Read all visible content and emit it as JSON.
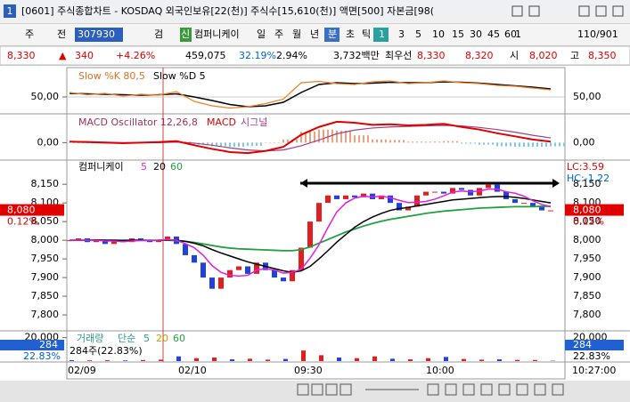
{
  "window": {
    "title": "[0601] 주식종합차트 - KOSDAQ 외국인보유[22(천)] 주식수[15,610(천)] 액면[500] 자본금[98("
  },
  "toolbar": {
    "market": "주",
    "kind": "전",
    "code": "307930",
    "search": "검",
    "new": "신",
    "name": "컴퍼니케이",
    "periods": [
      "일",
      "주",
      "월",
      "년",
      "분",
      "초",
      "틱"
    ],
    "intervals": [
      "1",
      "3",
      "5",
      "10",
      "15",
      "30",
      "45",
      "60"
    ],
    "count": "1",
    "range": "110/901"
  },
  "quote": [
    "8,330",
    "▲",
    "340",
    "+4.26%",
    "459,075",
    "32.19%",
    "2.94%",
    "3,732백만",
    "최우선",
    "8,330",
    "8,320",
    "시",
    "8,020",
    "고",
    "8,350"
  ],
  "stochastic": {
    "labels": [
      "Slow %K 80,5",
      "Slow %D 5"
    ],
    "ylim": [
      20,
      110
    ],
    "yticks": [
      {
        "value": 50,
        "label": "50,00"
      }
    ],
    "k": [
      60,
      55,
      58,
      52,
      56,
      54,
      62,
      40,
      30,
      25,
      28,
      35,
      45,
      82,
      85,
      80,
      78,
      84,
      86,
      80,
      82,
      86,
      82,
      80,
      76,
      74,
      70,
      66
    ],
    "d": [
      58,
      57,
      56,
      55,
      54,
      55,
      57,
      50,
      42,
      33,
      28,
      30,
      38,
      60,
      78,
      82,
      80,
      81,
      83,
      82,
      82,
      84,
      83,
      81,
      78,
      75,
      72,
      68
    ]
  },
  "macd": {
    "labels": [
      "MACD Oscillator 12,26,8",
      "MACD",
      "시그널"
    ],
    "ylim": [
      -30,
      50
    ],
    "yticks": [
      {
        "value": 0,
        "label": "0,00"
      }
    ],
    "macd": [
      2,
      1,
      0,
      -1,
      0,
      1,
      3,
      -5,
      -12,
      -18,
      -20,
      -16,
      -8,
      15,
      30,
      40,
      38,
      34,
      35,
      33,
      34,
      36,
      30,
      25,
      18,
      12,
      6,
      2
    ],
    "signal": [
      2,
      2,
      1,
      0,
      0,
      0,
      1,
      -1,
      -5,
      -10,
      -14,
      -16,
      -14,
      -6,
      5,
      17,
      24,
      28,
      30,
      31,
      32,
      33,
      32,
      29,
      25,
      20,
      14,
      9
    ],
    "oscillator": [
      0,
      -1,
      -1,
      -1,
      0,
      1,
      2,
      -4,
      -7,
      -8,
      -6,
      0,
      6,
      21,
      25,
      23,
      14,
      6,
      5,
      2,
      2,
      3,
      -2,
      -4,
      -7,
      -8,
      -8,
      -7
    ]
  },
  "price": {
    "labels": [
      "컴퍼니케이",
      "5",
      "20",
      "60"
    ],
    "ylim": [
      7762,
      8210
    ],
    "yticks": [
      {
        "value": 8150,
        "label": "8,150"
      },
      {
        "value": 8100,
        "label": "8,100"
      },
      {
        "value": 8050,
        "label": "8,050"
      },
      {
        "value": 8000,
        "label": "8,000"
      },
      {
        "value": 7950,
        "label": "7,950"
      },
      {
        "value": 7900,
        "label": "7,900"
      },
      {
        "value": 7850,
        "label": "7,850"
      },
      {
        "value": 7800,
        "label": "7,800"
      }
    ],
    "current": {
      "value": 8080,
      "label": "8,080"
    },
    "change": "0.12%",
    "lc": "LC:3.59",
    "hc": "HC:-1.22",
    "close": [
      8000,
      8005,
      7995,
      8000,
      7990,
      8000,
      7995,
      8005,
      8000,
      7995,
      8000,
      8010,
      7990,
      7960,
      7940,
      7900,
      7870,
      7900,
      7920,
      7930,
      7910,
      7940,
      7920,
      7900,
      7890,
      7920,
      7980,
      8050,
      8100,
      8120,
      8110,
      8120,
      8115,
      8125,
      8110,
      8120,
      8100,
      8080,
      8090,
      8120,
      8130,
      8130,
      8125,
      8140,
      8135,
      8120,
      8140,
      8150,
      8130,
      8110,
      8100,
      8100,
      8090,
      8080,
      8080
    ],
    "ma5": [
      8000,
      8000,
      8000,
      8000,
      7998,
      7998,
      7996,
      7998,
      7999,
      7999,
      8000,
      8002,
      8000,
      7991,
      7980,
      7960,
      7932,
      7914,
      7906,
      7904,
      7906,
      7920,
      7924,
      7920,
      7912,
      7914,
      7922,
      7952,
      7988,
      8034,
      8076,
      8100,
      8113,
      8118,
      8116,
      8118,
      8114,
      8107,
      8101,
      8102,
      8104,
      8110,
      8119,
      8129,
      8132,
      8130,
      8132,
      8137,
      8137,
      8130,
      8126,
      8118,
      8106,
      8096,
      8090
    ],
    "ma20": [
      8000,
      8000,
      8000,
      8001,
      8000,
      8000,
      7999,
      8000,
      8000,
      7999,
      8000,
      8001,
      8000,
      7997,
      7992,
      7985,
      7975,
      7966,
      7958,
      7950,
      7942,
      7936,
      7930,
      7924,
      7918,
      7914,
      7918,
      7930,
      7950,
      7972,
      7995,
      8015,
      8035,
      8050,
      8062,
      8072,
      8080,
      8085,
      8088,
      8092,
      8096,
      8100,
      8104,
      8108,
      8110,
      8112,
      8114,
      8116,
      8117,
      8117,
      8115,
      8112,
      8108,
      8104,
      8100
    ],
    "ma60": [
      8000,
      8000,
      8000,
      8000,
      8000,
      8000,
      8000,
      8000,
      8000,
      8000,
      8000,
      8000,
      7999,
      7997,
      7994,
      7990,
      7986,
      7982,
      7979,
      7977,
      7976,
      7975,
      7974,
      7973,
      7972,
      7972,
      7975,
      7982,
      7992,
      8002,
      8012,
      8022,
      8030,
      8038,
      8045,
      8051,
      8056,
      8060,
      8064,
      8068,
      8072,
      8075,
      8078,
      8080,
      8082,
      8084,
      8086,
      8087,
      8088,
      8089,
      8090,
      8090,
      8090,
      8091,
      8091
    ]
  },
  "volume": {
    "labels": [
      "거래량",
      "단순",
      "5",
      "20",
      "60"
    ],
    "last": "284",
    "ratio": "22.83%",
    "note": "284주(22.83%)",
    "ylim": [
      0,
      25000
    ],
    "yticks": [
      {
        "value": 20000,
        "label": "20,000"
      }
    ],
    "values": [
      800,
      600,
      700,
      500,
      900,
      1200,
      4000,
      2500,
      3000,
      1500,
      2000,
      1200,
      1800,
      9000,
      5000,
      3000,
      2500,
      4000,
      2000,
      1500,
      2500,
      3500,
      1800,
      1200,
      1500,
      1000,
      900,
      284
    ]
  },
  "x_labels": [
    "02/09",
    "02/10",
    "09:30",
    "10:00",
    "10:27:00"
  ]
}
